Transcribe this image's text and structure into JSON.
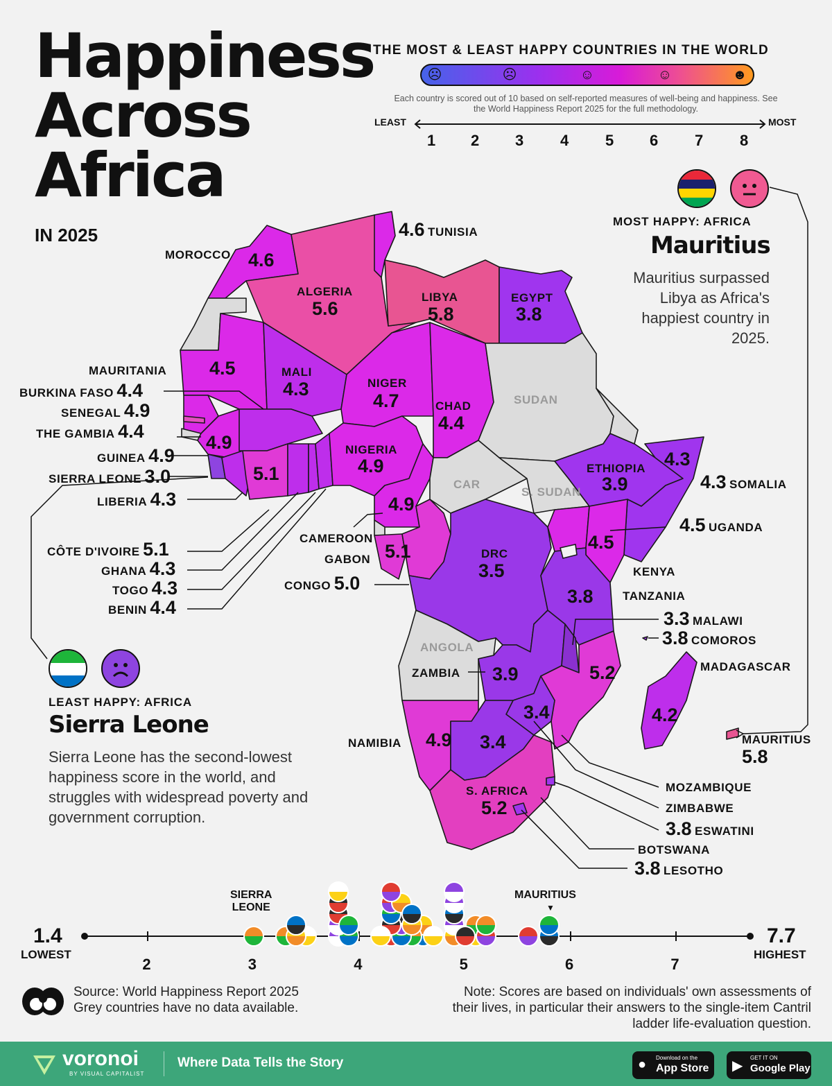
{
  "title_lines": [
    "Happiness",
    "Across",
    "Africa"
  ],
  "subtitle": "IN 2025",
  "legend": {
    "heading": "THE MOST & LEAST HAPPY COUNTRIES IN THE WORLD",
    "note": "Each country is scored out of 10 based on self-reported measures of well-being and happiness. See the World Happiness Report 2025 for the full methodology.",
    "least": "LEAST",
    "most": "MOST",
    "scale": [
      "1",
      "2",
      "3",
      "4",
      "5",
      "6",
      "7",
      "8"
    ],
    "colors": [
      "#4663ea",
      "#9b30ee",
      "#d81bd8",
      "#ee4f92",
      "#ff9a1e"
    ]
  },
  "most_happy": {
    "label": "MOST HAPPY: AFRICA",
    "country": "Mauritius",
    "text": "Mauritius surpassed Libya as Africa's happiest country in 2025."
  },
  "least_happy": {
    "label": "LEAST HAPPY: AFRICA",
    "country": "Sierra Leone",
    "text": "Sierra Leone has the second-lowest happiness score in the world, and struggles with widespread poverty and government corruption."
  },
  "countries": [
    {
      "name": "MOROCCO",
      "score": "4.6"
    },
    {
      "name": "ALGERIA",
      "score": "5.6"
    },
    {
      "name": "TUNISIA",
      "score": "4.6"
    },
    {
      "name": "LIBYA",
      "score": "5.8"
    },
    {
      "name": "EGYPT",
      "score": "3.8"
    },
    {
      "name": "MAURITANIA",
      "score": "4.5"
    },
    {
      "name": "MALI",
      "score": "4.3"
    },
    {
      "name": "NIGER",
      "score": "4.7"
    },
    {
      "name": "CHAD",
      "score": "4.4"
    },
    {
      "name": "BURKINA FASO",
      "score": "4.4"
    },
    {
      "name": "SENEGAL",
      "score": "4.9"
    },
    {
      "name": "THE GAMBIA",
      "score": "4.4"
    },
    {
      "name": "GUINEA",
      "score": "4.9"
    },
    {
      "name": "SIERRA LEONE",
      "score": "3.0"
    },
    {
      "name": "LIBERIA",
      "score": "4.3"
    },
    {
      "name": "CÔTE D'IVOIRE",
      "score": "5.1"
    },
    {
      "name": "GHANA",
      "score": "4.3"
    },
    {
      "name": "TOGO",
      "score": "4.3"
    },
    {
      "name": "BENIN",
      "score": "4.4"
    },
    {
      "name": "NIGERIA",
      "score": "4.9"
    },
    {
      "name": "CAMEROON",
      "score": "4.9"
    },
    {
      "name": "GABON",
      "score": "5.1"
    },
    {
      "name": "CONGO",
      "score": "5.0"
    },
    {
      "name": "DRC",
      "score": "3.5"
    },
    {
      "name": "ETHIOPIA",
      "score": "3.9"
    },
    {
      "name": "SOMALIA",
      "score": "4.3"
    },
    {
      "name": "UGANDA",
      "score": "4.5"
    },
    {
      "name": "KENYA",
      "score": "4.5"
    },
    {
      "name": "TANZANIA",
      "score": "3.8"
    },
    {
      "name": "MALAWI",
      "score": "3.3"
    },
    {
      "name": "COMOROS",
      "score": "3.8"
    },
    {
      "name": "MADAGASCAR",
      "score": "4.2"
    },
    {
      "name": "ZAMBIA",
      "score": "3.9"
    },
    {
      "name": "MOZAMBIQUE",
      "score": "5.2"
    },
    {
      "name": "ZIMBABWE",
      "score": "3.4"
    },
    {
      "name": "BOTSWANA",
      "score": "3.4"
    },
    {
      "name": "NAMIBIA",
      "score": "4.9"
    },
    {
      "name": "S. AFRICA",
      "score": "5.2"
    },
    {
      "name": "ESWATINI",
      "score": "3.8"
    },
    {
      "name": "LESOTHO",
      "score": "3.8"
    },
    {
      "name": "MAURITIUS",
      "score": "5.8"
    }
  ],
  "no_data": [
    "SUDAN",
    "CAR",
    "S. SUDAN",
    "ANGOLA"
  ],
  "axis": {
    "min_value": "1.4",
    "min_label": "LOWEST",
    "max_value": "7.7",
    "max_label": "HIGHEST",
    "ticks": [
      "2",
      "3",
      "4",
      "5",
      "6",
      "7"
    ],
    "marker_low": "SIERRA\nLEONE",
    "marker_high": "MAURITIUS"
  },
  "source": {
    "line1": "Source: World Happiness Report 2025",
    "line2": "Grey countries have no data available."
  },
  "note": "Note: Scores are based on individuals' own assessments of their lives, in particular their answers to the single-item Cantril ladder life-evaluation question.",
  "footer": {
    "brand": "voronoi",
    "brand_sub": "BY VISUAL CAPITALIST",
    "tagline": "Where Data Tells the Story",
    "appstore_small": "Download on the",
    "appstore_big": "App Store",
    "gplay_small": "GET IT ON",
    "gplay_big": "Google Play"
  }
}
